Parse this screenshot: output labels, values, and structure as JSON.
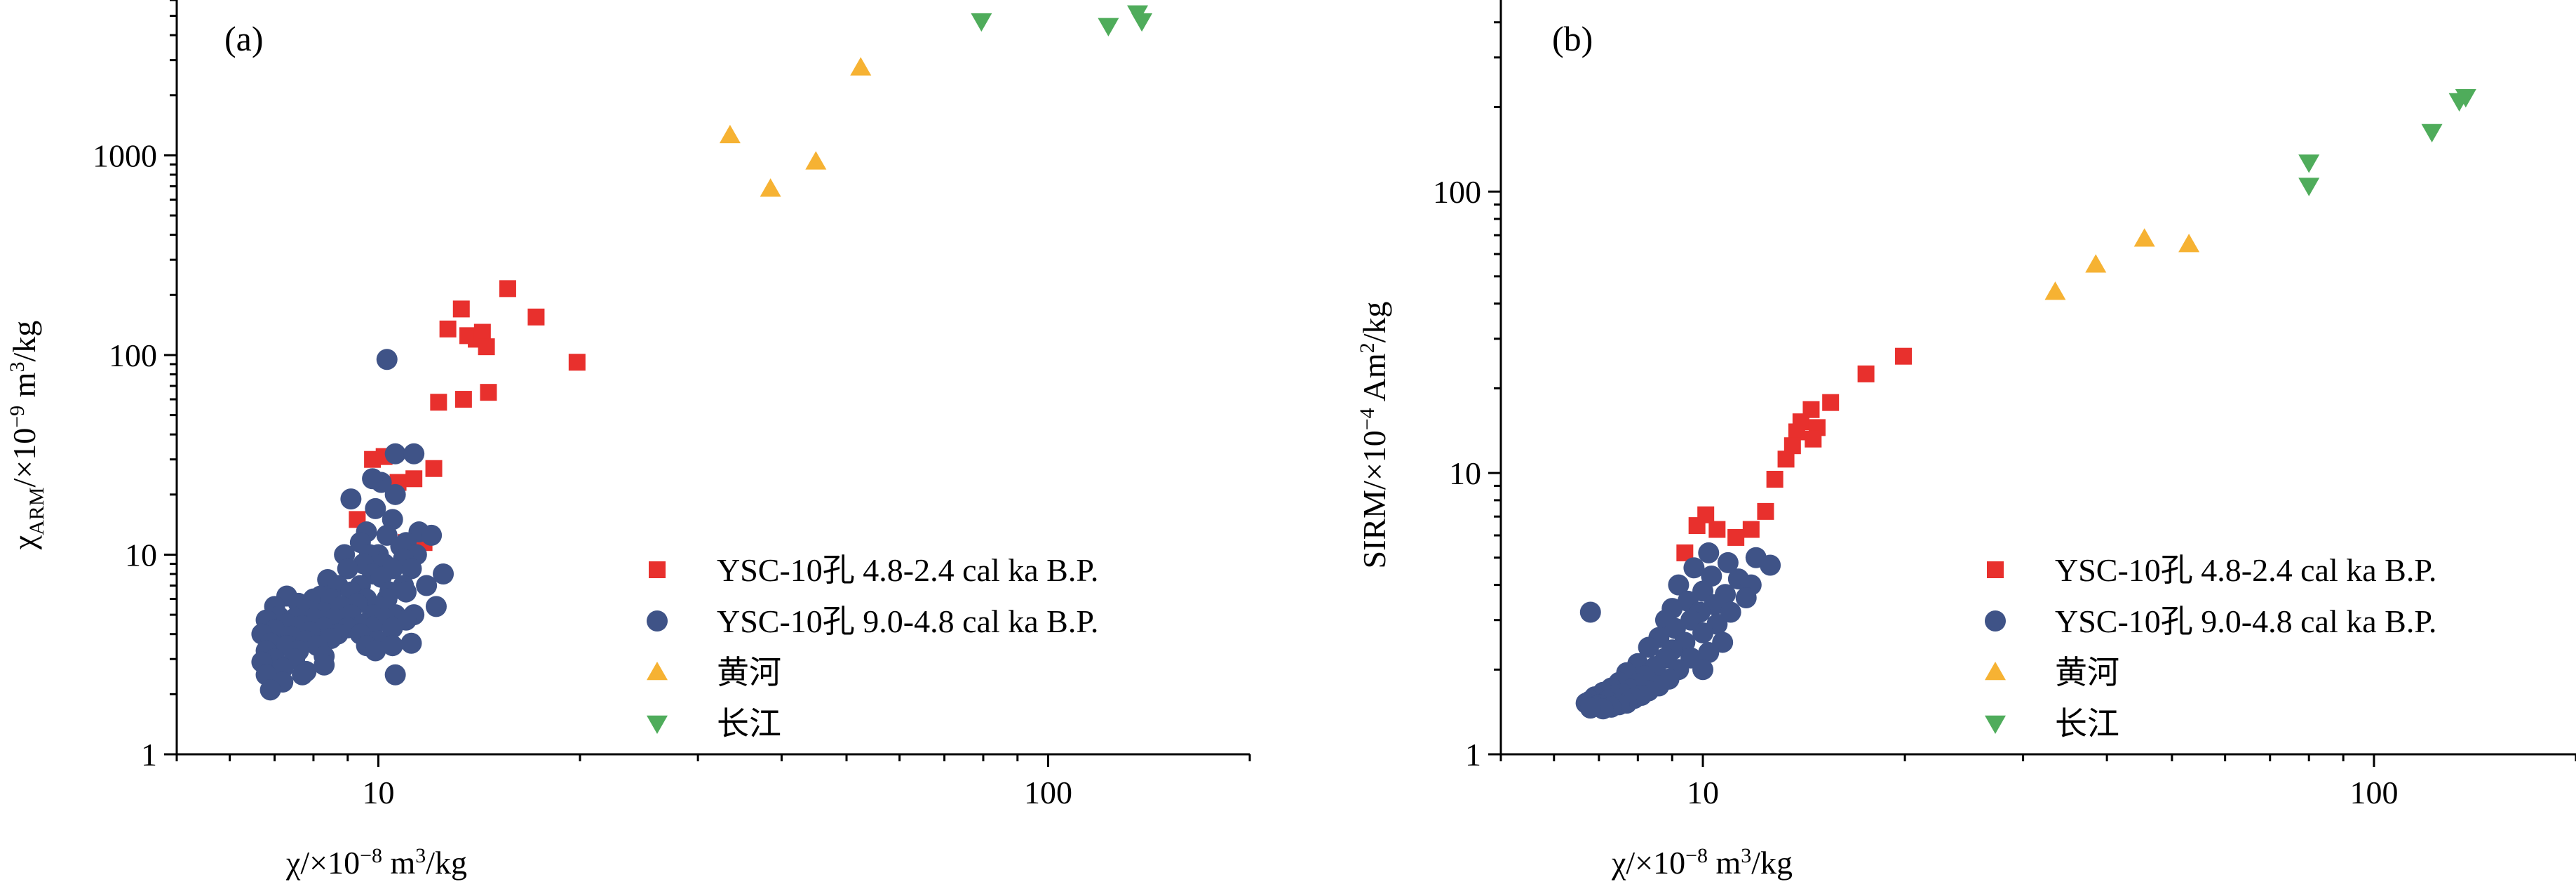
{
  "colors": {
    "holocene_late": "#e8302d",
    "holocene_early": "#3f5387",
    "yellow_river": "#f6b233",
    "yangtze": "#4fac5b"
  },
  "chart_data": [
    {
      "type": "scatter",
      "panel_label": "(a)",
      "xscale": "log",
      "yscale": "log",
      "xlim": [
        5,
        200
      ],
      "ylim": [
        1,
        6000
      ],
      "x_ticks": [
        {
          "v": 10,
          "label": "10"
        },
        {
          "v": 100,
          "label": "100"
        }
      ],
      "y_ticks": [
        {
          "v": 1,
          "label": "1"
        },
        {
          "v": 10,
          "label": "10"
        },
        {
          "v": 100,
          "label": "100"
        },
        {
          "v": 1000,
          "label": "1000"
        }
      ],
      "xlabel_main": "χ/×10",
      "xlabel_exp": "−8",
      "xlabel_tail1": " m",
      "xlabel_sup2": "3",
      "xlabel_tail2": "/kg",
      "ylabel_main": "χ",
      "ylabel_sub": "ARM",
      "ylabel_mid": "/×10",
      "ylabel_exp": "−9",
      "ylabel_mid2": " m",
      "ylabel_sup2": "3",
      "ylabel_tail": "/kg",
      "legend": [
        "YSC-10孔 4.8-2.4 cal ka B.P.",
        "YSC-10孔 9.0-4.8 cal ka B.P.",
        "黄河",
        "长江"
      ],
      "series": [
        {
          "name": "YSC-10孔 4.8-2.4 cal ka B.P.",
          "marker": "square",
          "color": "#e8302d",
          "points": [
            [
              15.6,
              215
            ],
            [
              17.2,
              155
            ],
            [
              13.3,
              170
            ],
            [
              12.7,
              135
            ],
            [
              13.6,
              125
            ],
            [
              14.0,
              120
            ],
            [
              14.3,
              130
            ],
            [
              14.5,
              110
            ],
            [
              19.8,
              92
            ],
            [
              14.6,
              65
            ],
            [
              13.4,
              60
            ],
            [
              12.3,
              58
            ],
            [
              12.1,
              27
            ],
            [
              10.7,
              23
            ],
            [
              9.8,
              30
            ],
            [
              10.2,
              31
            ],
            [
              11.3,
              24
            ],
            [
              9.3,
              15
            ],
            [
              11.0,
              11.5
            ],
            [
              11.7,
              11.5
            ]
          ]
        },
        {
          "name": "YSC-10孔 9.0-4.8 cal ka B.P.",
          "marker": "circle",
          "color": "#3f5387",
          "points": [
            [
              10.3,
              95
            ],
            [
              10.6,
              32
            ],
            [
              11.3,
              32
            ],
            [
              10.1,
              23
            ],
            [
              9.8,
              24
            ],
            [
              10.6,
              20
            ],
            [
              9.1,
              19
            ],
            [
              9.9,
              17
            ],
            [
              10.5,
              15
            ],
            [
              9.6,
              13
            ],
            [
              10.3,
              12.5
            ],
            [
              11.5,
              13
            ],
            [
              11.0,
              11.5
            ],
            [
              12.0,
              12.5
            ],
            [
              9.4,
              11.5
            ],
            [
              10.8,
              11
            ],
            [
              10.0,
              10
            ],
            [
              8.9,
              10
            ],
            [
              9.7,
              10
            ],
            [
              11.4,
              10
            ],
            [
              12.5,
              8
            ],
            [
              10.9,
              9.5
            ],
            [
              10.2,
              9
            ],
            [
              9.5,
              9
            ],
            [
              11.2,
              8.5
            ],
            [
              8.4,
              7.5
            ],
            [
              9.0,
              8.5
            ],
            [
              10.5,
              8.5
            ],
            [
              9.8,
              8
            ],
            [
              10.1,
              7.7
            ],
            [
              11.8,
              7
            ],
            [
              8.7,
              7
            ],
            [
              9.4,
              7
            ],
            [
              10.9,
              7
            ],
            [
              9.1,
              6.5
            ],
            [
              10.4,
              6.5
            ],
            [
              11.0,
              6.5
            ],
            [
              8.2,
              6.2
            ],
            [
              9.6,
              6
            ],
            [
              10.3,
              6
            ],
            [
              7.3,
              6.2
            ],
            [
              8.0,
              6
            ],
            [
              8.5,
              6
            ],
            [
              9.3,
              5.7
            ],
            [
              10.0,
              5.5
            ],
            [
              12.2,
              5.5
            ],
            [
              7.6,
              5.7
            ],
            [
              8.8,
              5.5
            ],
            [
              9.8,
              5
            ],
            [
              10.6,
              5
            ],
            [
              11.3,
              5
            ],
            [
              7.0,
              5.5
            ],
            [
              7.8,
              5.3
            ],
            [
              8.3,
              5.1
            ],
            [
              9.1,
              5
            ],
            [
              10.2,
              4.8
            ],
            [
              7.1,
              4.9
            ],
            [
              7.5,
              4.8
            ],
            [
              8.0,
              4.8
            ],
            [
              8.6,
              4.8
            ],
            [
              9.5,
              4.5
            ],
            [
              11.0,
              4.7
            ],
            [
              6.8,
              4.7
            ],
            [
              7.3,
              4.5
            ],
            [
              7.7,
              4.4
            ],
            [
              8.3,
              4.3
            ],
            [
              9.0,
              4.3
            ],
            [
              9.8,
              4.3
            ],
            [
              10.5,
              4.3
            ],
            [
              7.0,
              4.2
            ],
            [
              7.9,
              4.1
            ],
            [
              8.7,
              4
            ],
            [
              9.4,
              4
            ],
            [
              6.7,
              4
            ],
            [
              7.4,
              3.9
            ],
            [
              7.8,
              3.7
            ],
            [
              8.5,
              3.8
            ],
            [
              10.0,
              3.7
            ],
            [
              11.2,
              3.6
            ],
            [
              6.9,
              3.6
            ],
            [
              7.3,
              3.5
            ],
            [
              8.1,
              3.5
            ],
            [
              9.6,
              3.5
            ],
            [
              10.5,
              3.5
            ],
            [
              6.8,
              3.3
            ],
            [
              7.6,
              3.3
            ],
            [
              8.3,
              3.1
            ],
            [
              9.9,
              3.3
            ],
            [
              7.0,
              3.0
            ],
            [
              7.5,
              3.0
            ],
            [
              6.7,
              2.9
            ],
            [
              7.2,
              2.7
            ],
            [
              7.8,
              2.6
            ],
            [
              8.3,
              2.8
            ],
            [
              6.8,
              2.5
            ],
            [
              7.7,
              2.5
            ],
            [
              10.6,
              2.5
            ],
            [
              7.2,
              2.3
            ],
            [
              6.9,
              2.1
            ]
          ]
        },
        {
          "name": "黄河",
          "marker": "triangle-up",
          "color": "#f6b233",
          "points": [
            [
              33.5,
              1260
            ],
            [
              38.5,
              680
            ],
            [
              45.0,
              930
            ],
            [
              52.5,
              2750
            ]
          ]
        },
        {
          "name": "长江",
          "marker": "triangle-down",
          "color": "#4fac5b",
          "points": [
            [
              79.5,
              4700
            ],
            [
              123,
              4450
            ],
            [
              136,
              5150
            ],
            [
              138,
              4700
            ]
          ]
        }
      ]
    },
    {
      "type": "scatter",
      "panel_label": "(b)",
      "xscale": "log",
      "yscale": "log",
      "xlim": [
        5,
        200
      ],
      "ylim": [
        1,
        480
      ],
      "x_ticks": [
        {
          "v": 10,
          "label": "10"
        },
        {
          "v": 100,
          "label": "100"
        }
      ],
      "y_ticks": [
        {
          "v": 1,
          "label": "1"
        },
        {
          "v": 10,
          "label": "10"
        },
        {
          "v": 100,
          "label": "100"
        }
      ],
      "xlabel_main": "χ/×10",
      "xlabel_exp": "−8",
      "xlabel_tail1": " m",
      "xlabel_sup2": "3",
      "xlabel_tail2": "/kg",
      "ylabel_main": "SIRM/×10",
      "ylabel_exp": "−4",
      "ylabel_mid": " Am",
      "ylabel_sup2": "2",
      "ylabel_tail": "/kg",
      "legend": [
        "YSC-10孔 4.8-2.4 cal ka B.P.",
        "YSC-10孔 9.0-4.8 cal ka B.P.",
        "黄河",
        "长江"
      ],
      "series": [
        {
          "name": "YSC-10孔 4.8-2.4 cal ka B.P.",
          "marker": "square",
          "color": "#e8302d",
          "points": [
            [
              19.9,
              26
            ],
            [
              17.5,
              22.5
            ],
            [
              15.5,
              17.8
            ],
            [
              14.5,
              16.8
            ],
            [
              14.0,
              15.2
            ],
            [
              14.8,
              14.5
            ],
            [
              13.8,
              14
            ],
            [
              14.6,
              13.2
            ],
            [
              13.6,
              12.5
            ],
            [
              13.3,
              11.2
            ],
            [
              12.8,
              9.5
            ],
            [
              12.4,
              7.3
            ],
            [
              11.8,
              6.3
            ],
            [
              11.2,
              5.9
            ],
            [
              10.5,
              6.3
            ],
            [
              9.8,
              6.5
            ],
            [
              10.1,
              7.1
            ],
            [
              9.4,
              5.2
            ]
          ]
        },
        {
          "name": "YSC-10孔 9.0-4.8 cal ka B.P.",
          "marker": "circle",
          "color": "#3f5387",
          "points": [
            [
              6.8,
              3.2
            ],
            [
              10.2,
              5.2
            ],
            [
              12.0,
              5.0
            ],
            [
              12.6,
              4.7
            ],
            [
              10.9,
              4.8
            ],
            [
              11.3,
              4.2
            ],
            [
              11.8,
              4.0
            ],
            [
              9.7,
              4.6
            ],
            [
              10.3,
              4.3
            ],
            [
              9.2,
              4.0
            ],
            [
              10.0,
              3.8
            ],
            [
              10.8,
              3.7
            ],
            [
              11.6,
              3.6
            ],
            [
              9.5,
              3.5
            ],
            [
              10.4,
              3.4
            ],
            [
              9.0,
              3.3
            ],
            [
              9.9,
              3.2
            ],
            [
              11.0,
              3.2
            ],
            [
              8.8,
              3.0
            ],
            [
              9.6,
              3.0
            ],
            [
              10.5,
              2.9
            ],
            [
              9.1,
              2.8
            ],
            [
              10.0,
              2.7
            ],
            [
              8.6,
              2.6
            ],
            [
              9.4,
              2.5
            ],
            [
              10.7,
              2.5
            ],
            [
              8.3,
              2.4
            ],
            [
              9.0,
              2.35
            ],
            [
              10.2,
              2.3
            ],
            [
              8.8,
              2.2
            ],
            [
              9.6,
              2.2
            ],
            [
              8.0,
              2.1
            ],
            [
              8.5,
              2.05
            ],
            [
              9.2,
              2.0
            ],
            [
              10.0,
              2.0
            ],
            [
              7.7,
              1.95
            ],
            [
              8.2,
              1.9
            ],
            [
              8.9,
              1.85
            ],
            [
              7.5,
              1.8
            ],
            [
              8.0,
              1.78
            ],
            [
              8.6,
              1.75
            ],
            [
              7.3,
              1.72
            ],
            [
              7.8,
              1.7
            ],
            [
              8.3,
              1.68
            ],
            [
              7.1,
              1.66
            ],
            [
              7.6,
              1.64
            ],
            [
              8.1,
              1.62
            ],
            [
              6.9,
              1.6
            ],
            [
              7.4,
              1.58
            ],
            [
              7.9,
              1.58
            ],
            [
              6.8,
              1.55
            ],
            [
              7.2,
              1.55
            ],
            [
              7.7,
              1.52
            ],
            [
              6.7,
              1.52
            ],
            [
              7.0,
              1.5
            ],
            [
              7.5,
              1.5
            ],
            [
              6.9,
              1.48
            ],
            [
              7.3,
              1.47
            ],
            [
              7.1,
              1.45
            ],
            [
              6.8,
              1.46
            ]
          ]
        },
        {
          "name": "黄河",
          "marker": "triangle-up",
          "color": "#f6b233",
          "points": [
            [
              33.5,
              44
            ],
            [
              38.5,
              55
            ],
            [
              45.5,
              68
            ],
            [
              53,
              65
            ]
          ]
        },
        {
          "name": "长江",
          "marker": "triangle-down",
          "color": "#4fac5b",
          "points": [
            [
              80,
              127
            ],
            [
              80,
              105
            ],
            [
              122,
              163
            ],
            [
              134,
              210
            ],
            [
              137,
              217
            ]
          ]
        }
      ]
    }
  ]
}
